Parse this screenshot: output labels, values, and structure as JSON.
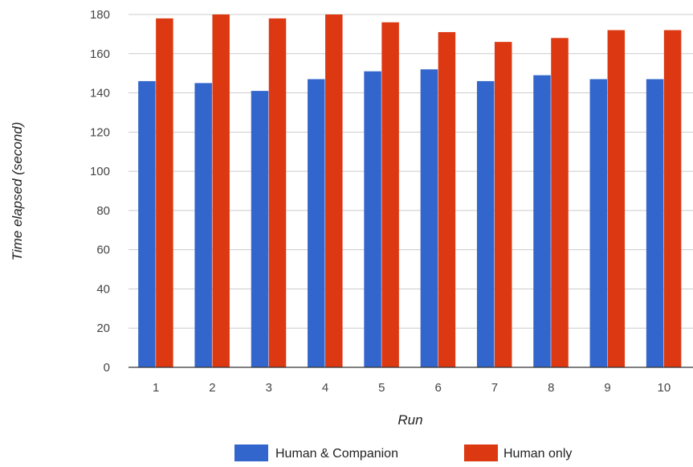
{
  "chart_data": {
    "type": "bar",
    "title": "",
    "xlabel": "Run",
    "ylabel": "Time elapsed (second)",
    "categories": [
      "1",
      "2",
      "3",
      "4",
      "5",
      "6",
      "7",
      "8",
      "9",
      "10"
    ],
    "ylim": [
      0,
      180
    ],
    "yticks": [
      0,
      20,
      40,
      60,
      80,
      100,
      120,
      140,
      160,
      180
    ],
    "grid": true,
    "legend_position": "bottom",
    "series": [
      {
        "name": "Human & Companion",
        "color": "#3366cc",
        "values": [
          146,
          145,
          141,
          147,
          151,
          152,
          146,
          149,
          147,
          147
        ]
      },
      {
        "name": "Human only",
        "color": "#dc3912",
        "values": [
          178,
          180,
          178,
          180,
          176,
          171,
          166,
          168,
          172,
          172
        ]
      }
    ]
  }
}
